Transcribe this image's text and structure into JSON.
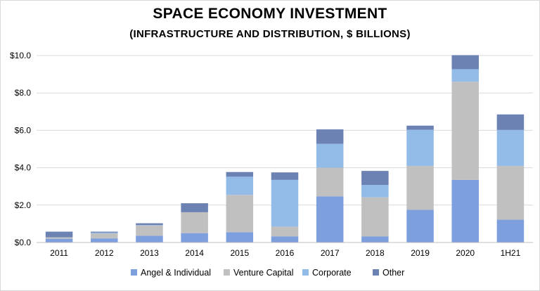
{
  "chart_data": {
    "type": "bar",
    "stacked": true,
    "title": "SPACE ECONOMY INVESTMENT",
    "subtitle": "(INFRASTRUCTURE AND DISTRIBUTION, $ BILLIONS)",
    "categories": [
      "2011",
      "2012",
      "2013",
      "2014",
      "2015",
      "2016",
      "2017",
      "2018",
      "2019",
      "2020",
      "1H21"
    ],
    "ylim": [
      0,
      10
    ],
    "yticks": [
      0,
      2,
      4,
      6,
      8,
      10
    ],
    "ytick_labels": [
      "$0.0",
      "$2.0",
      "$4.0",
      "$6.0",
      "$8.0",
      "$10.0"
    ],
    "grid": true,
    "legend_position": "bottom",
    "series": [
      {
        "name": "Angel & Individual",
        "color": "#7d9fde",
        "values": [
          0.2,
          0.22,
          0.36,
          0.5,
          0.55,
          0.33,
          2.47,
          0.32,
          1.75,
          3.35,
          1.22
        ]
      },
      {
        "name": "Venture Capital",
        "color": "#c0c0c0",
        "values": [
          0.08,
          0.27,
          0.55,
          1.12,
          2.0,
          0.52,
          1.53,
          2.1,
          2.35,
          5.25,
          2.88
        ]
      },
      {
        "name": "Corporate",
        "color": "#92bbe8",
        "values": [
          0.0,
          0.04,
          0.02,
          0.0,
          0.97,
          2.5,
          1.28,
          0.66,
          1.93,
          0.67,
          1.92
        ]
      },
      {
        "name": "Other",
        "color": "#6b82b3",
        "values": [
          0.3,
          0.05,
          0.1,
          0.48,
          0.25,
          0.4,
          0.77,
          0.75,
          0.22,
          0.75,
          0.83
        ]
      }
    ]
  }
}
